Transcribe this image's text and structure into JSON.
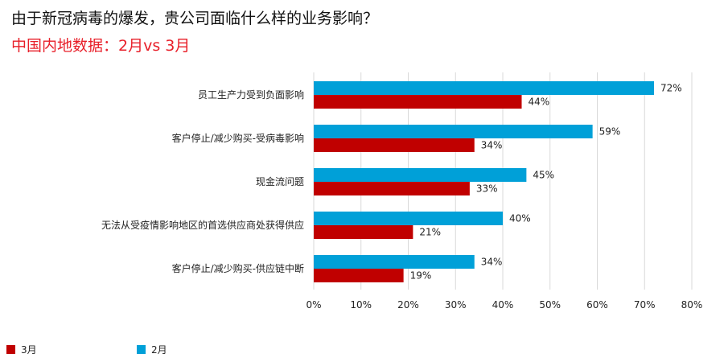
{
  "header": {
    "title": "由于新冠病毒的爆发，贵公司面临什么样的业务影响？",
    "subtitle": "中国内地数据：2月vs 3月"
  },
  "colors": {
    "march": "#c00000",
    "february": "#00a0d8",
    "grid": "#d9d9d9",
    "subtitle": "#e8202a"
  },
  "chart_data": {
    "type": "bar",
    "orientation": "horizontal",
    "categories": [
      "员工生产力受到负面影响",
      "客户停止/减少购买-受病毒影响",
      "现金流问题",
      "无法从受疫情影响地区的首选供应商处获得供应",
      "客户停止/减少购买-供应链中断"
    ],
    "series": [
      {
        "name": "2月",
        "values": [
          72,
          59,
          45,
          40,
          34
        ],
        "labels": [
          "72%",
          "59%",
          "45%",
          "40%",
          "34%"
        ]
      },
      {
        "name": "3月",
        "values": [
          44,
          34,
          33,
          21,
          19
        ],
        "labels": [
          "44%",
          "34%",
          "33%",
          "21%",
          "19%"
        ]
      }
    ],
    "xlim": [
      0,
      80
    ],
    "xticks": [
      "0%",
      "10%",
      "20%",
      "30%",
      "40%",
      "50%",
      "60%",
      "70%",
      "80%"
    ],
    "grid": true,
    "legend_position": "bottom-left"
  },
  "legend": [
    {
      "label": "3月",
      "color": "#c00000"
    },
    {
      "label": "2月",
      "color": "#00a0d8"
    }
  ]
}
